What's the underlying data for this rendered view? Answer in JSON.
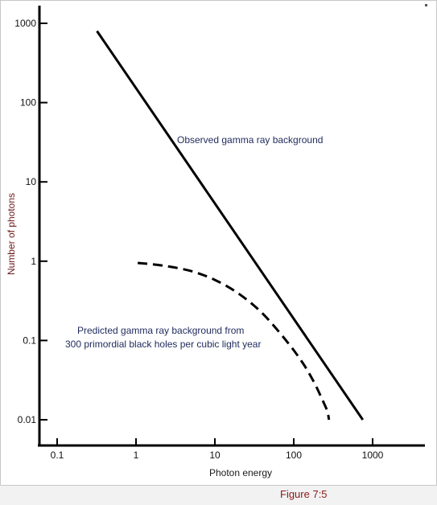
{
  "chart_data": {
    "type": "line",
    "title": "",
    "xlabel": "Photon energy",
    "ylabel": "Number of photons",
    "xscale": "log",
    "yscale": "log",
    "xlim": [
      0.05,
      2000
    ],
    "ylim": [
      0.007,
      1500
    ],
    "x_ticks": [
      0.1,
      1,
      10,
      100,
      1000
    ],
    "x_tick_labels": [
      "0.1",
      "1",
      "10",
      "100",
      "1000"
    ],
    "y_ticks": [
      0.01,
      0.1,
      1,
      10,
      100,
      1000
    ],
    "y_tick_labels": [
      "0.01",
      "0.1",
      "1",
      "10",
      "100",
      "1000"
    ],
    "grid": false,
    "series": [
      {
        "style": "solid",
        "color": "#000000",
        "x": [
          0.32,
          750
        ],
        "y": [
          800,
          0.01
        ]
      },
      {
        "style": "dashed",
        "color": "#000000",
        "x": [
          1.05,
          2.2,
          5,
          10,
          20,
          40,
          80,
          130,
          180,
          230,
          265,
          280
        ],
        "y": [
          0.95,
          0.88,
          0.75,
          0.58,
          0.39,
          0.22,
          0.1,
          0.052,
          0.03,
          0.018,
          0.013,
          0.01
        ]
      }
    ],
    "annotations": [
      {
        "id": "observed",
        "text": "Observed gamma ray background"
      },
      {
        "id": "predicted_1",
        "text": "Predicted gamma ray background from"
      },
      {
        "id": "predicted_2",
        "text": "300 primordial black holes per cubic light year"
      }
    ]
  },
  "caption": "Figure 7:5",
  "colors": {
    "line": "#000000",
    "annotation": "#1f2a5c",
    "ylabel": "#6b1a1a",
    "caption": "#8b1a1a"
  }
}
